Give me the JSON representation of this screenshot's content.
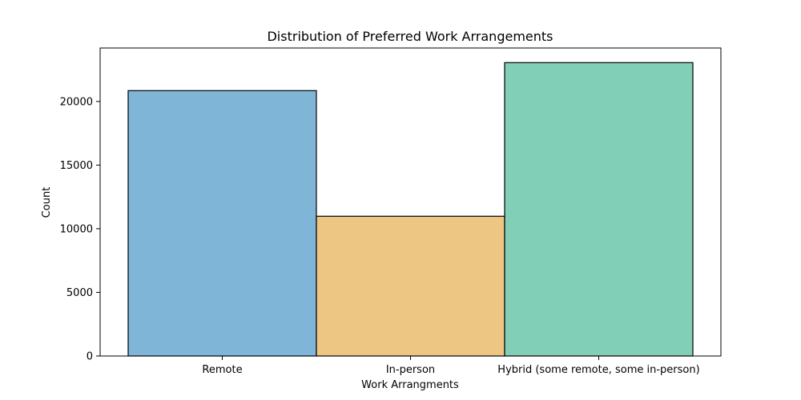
{
  "chart_data": {
    "type": "bar",
    "title": "Distribution of Preferred Work Arrangements",
    "xlabel": "Work Arrangments",
    "ylabel": "Count",
    "categories": [
      "Remote",
      "In-person",
      "Hybrid (some remote, some in-person)"
    ],
    "values": [
      20850,
      10980,
      23050
    ],
    "colors": [
      "#7fb6d8",
      "#eec683",
      "#82cfb8"
    ],
    "ylim": [
      0,
      24200
    ],
    "yticks": [
      0,
      5000,
      10000,
      15000,
      20000
    ],
    "grid": false,
    "legend": "none"
  }
}
